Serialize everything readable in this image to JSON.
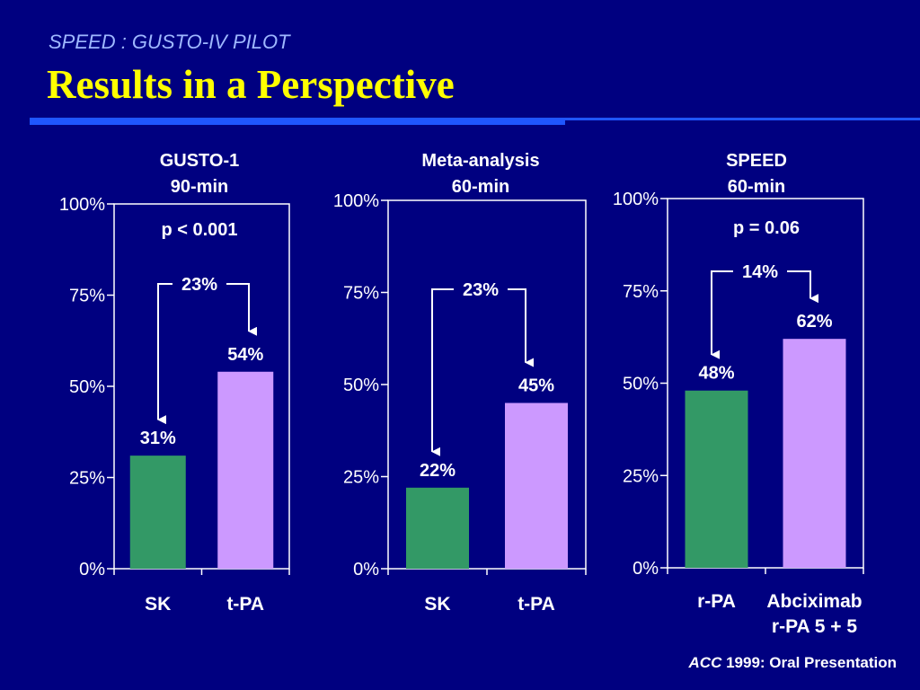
{
  "slide": {
    "subtitle": "SPEED : GUSTO-IV PILOT",
    "title": "Results in a Perspective",
    "citation_italic": "ACC",
    "citation_rest": " 1999: Oral Presentation"
  },
  "colors": {
    "background": "#000080",
    "green": "#339966",
    "violet": "#cc99ff",
    "accent": "#1f56ff",
    "title": "#ffff00"
  },
  "chart_data": [
    {
      "type": "bar",
      "title": [
        "GUSTO-1",
        "90-min"
      ],
      "categories": [
        [
          "SK"
        ],
        [
          "t-PA"
        ]
      ],
      "values": [
        31,
        54
      ],
      "value_labels": [
        "31%",
        "54%"
      ],
      "colors": [
        "#339966",
        "#cc99ff"
      ],
      "ylim": [
        0,
        100
      ],
      "yticks": [
        "0%",
        "25%",
        "50%",
        "75%",
        "100%"
      ],
      "pvalue": "p < 0.001",
      "difference": "23%",
      "grid": false
    },
    {
      "type": "bar",
      "title": [
        "Meta-analysis",
        "60-min"
      ],
      "categories": [
        [
          "SK"
        ],
        [
          "t-PA"
        ]
      ],
      "values": [
        22,
        45
      ],
      "value_labels": [
        "22%",
        "45%"
      ],
      "colors": [
        "#339966",
        "#cc99ff"
      ],
      "ylim": [
        0,
        100
      ],
      "yticks": [
        "0%",
        "25%",
        "50%",
        "75%",
        "100%"
      ],
      "pvalue": "",
      "difference": "23%",
      "grid": false
    },
    {
      "type": "bar",
      "title": [
        "SPEED",
        "60-min"
      ],
      "categories": [
        [
          "r-PA"
        ],
        [
          "Abciximab",
          "r-PA 5 + 5"
        ]
      ],
      "values": [
        48,
        62
      ],
      "value_labels": [
        "48%",
        "62%"
      ],
      "colors": [
        "#339966",
        "#cc99ff"
      ],
      "ylim": [
        0,
        100
      ],
      "yticks": [
        "0%",
        "25%",
        "50%",
        "75%",
        "100%"
      ],
      "pvalue": "p = 0.06",
      "difference": "14%",
      "grid": false
    }
  ]
}
